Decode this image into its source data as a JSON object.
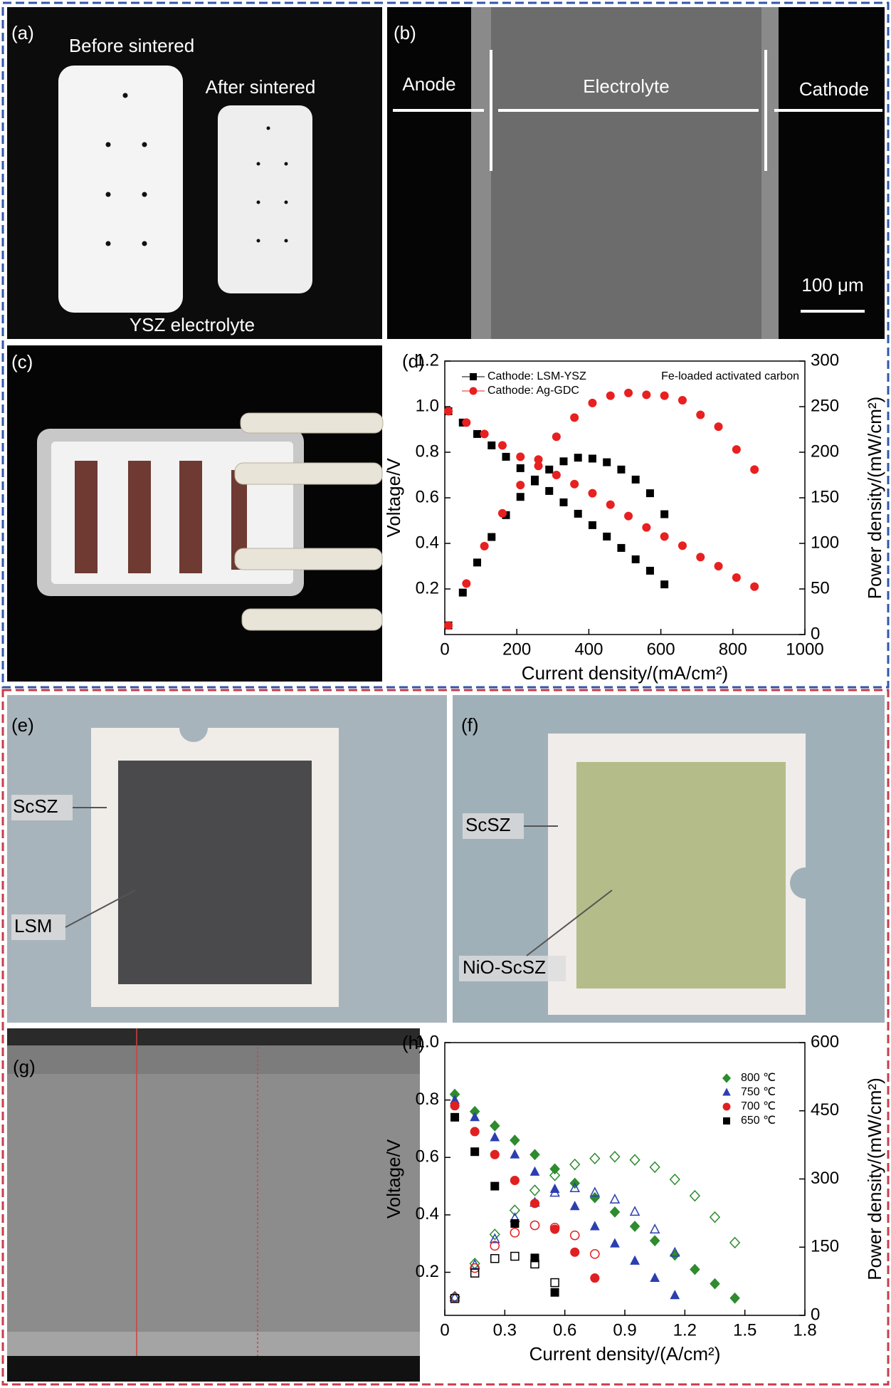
{
  "panels": {
    "a": {
      "label": "(a)",
      "before": "Before sintered",
      "after": "After sintered",
      "caption": "YSZ electrolyte"
    },
    "b": {
      "label": "(b)",
      "anode": "Anode",
      "electrolyte": "Electrolyte",
      "cathode": "Cathode",
      "scale": "100 μm"
    },
    "c": {
      "label": "(c)"
    },
    "e": {
      "label": "(e)",
      "frame": "ScSZ",
      "center": "LSM"
    },
    "f": {
      "label": "(f)",
      "frame": "ScSZ",
      "center": "NiO-ScSZ"
    },
    "g": {
      "label": "(g)"
    }
  },
  "chart_data": [
    {
      "type": "scatter",
      "panel_label": "(d)",
      "annotation": "Fe-loaded activated carbon",
      "x_label": "Current density/(mA/cm²)",
      "y_label": "Voltage/V",
      "y2_label": "Power density/(mW/cm²)",
      "xlim": [
        0,
        1000
      ],
      "xticks": [
        0,
        200,
        400,
        600,
        800,
        1000
      ],
      "ylim": [
        0,
        1.2
      ],
      "yticks": [
        0.2,
        0.4,
        0.6,
        0.8,
        {
          "value": 1,
          "label": "1.0"
        },
        1.2
      ],
      "y2lim": [
        0,
        300
      ],
      "y2ticks": [
        0,
        50,
        100,
        150,
        200,
        250,
        300
      ],
      "legend": "upper left",
      "hollow_power": false,
      "series": [
        {
          "name": "Cathode: LSM-YSZ",
          "color": "#000000",
          "marker": "square",
          "x": [
            10,
            50,
            90,
            130,
            170,
            210,
            250,
            290,
            330,
            370,
            410,
            450,
            490,
            530,
            570,
            610
          ],
          "values": [
            0.98,
            0.93,
            0.88,
            0.83,
            0.78,
            0.73,
            0.68,
            0.63,
            0.58,
            0.53,
            0.48,
            0.43,
            0.38,
            0.33,
            0.28,
            0.22
          ],
          "power": [
            10,
            46,
            79,
            107,
            131,
            151,
            168,
            181,
            190,
            194,
            193,
            189,
            181,
            170,
            155,
            132
          ]
        },
        {
          "name": "Cathode: Ag-GDC",
          "color": "#e8201f",
          "marker": "circle",
          "x": [
            10,
            60,
            110,
            160,
            210,
            260,
            310,
            360,
            410,
            460,
            510,
            560,
            610,
            660,
            710,
            760,
            810,
            860
          ],
          "values": [
            0.98,
            0.93,
            0.88,
            0.83,
            0.78,
            0.74,
            0.7,
            0.66,
            0.62,
            0.57,
            0.52,
            0.47,
            0.43,
            0.39,
            0.34,
            0.3,
            0.25,
            0.21
          ],
          "power": [
            10,
            56,
            97,
            133,
            164,
            192,
            217,
            238,
            254,
            262,
            265,
            263,
            262,
            257,
            241,
            228,
            203,
            181
          ]
        }
      ]
    },
    {
      "type": "scatter",
      "panel_label": "(h)",
      "x_label": "Current density/(A/cm²)",
      "y_label": "Voltage/V",
      "y2_label": "Power density/(mW/cm²)",
      "xlim": [
        0,
        1.8
      ],
      "xticks": [
        0,
        0.3,
        0.6,
        0.9,
        1.2,
        1.5,
        1.8
      ],
      "ylim": [
        0.05,
        1
      ],
      "yticks": [
        0.2,
        0.4,
        0.6,
        0.8,
        {
          "value": 1,
          "label": "1.0"
        }
      ],
      "y2lim": [
        0,
        600
      ],
      "y2ticks": [
        0,
        150,
        300,
        450,
        600
      ],
      "legend": "upper right",
      "hollow_power": true,
      "series": [
        {
          "name": "800 ℃",
          "color": "#2e8b2e",
          "marker": "diamond",
          "x": [
            0.05,
            0.15,
            0.25,
            0.35,
            0.45,
            0.55,
            0.65,
            0.75,
            0.85,
            0.95,
            1.05,
            1.15,
            1.25,
            1.35,
            1.45
          ],
          "values": [
            0.82,
            0.76,
            0.71,
            0.66,
            0.61,
            0.56,
            0.51,
            0.46,
            0.41,
            0.36,
            0.31,
            0.26,
            0.21,
            0.16,
            0.11
          ],
          "power": [
            41,
            114,
            178,
            231,
            275,
            308,
            332,
            345,
            349,
            342,
            326,
            299,
            263,
            216,
            160
          ]
        },
        {
          "name": "750 ℃",
          "color": "#2b3fb0",
          "marker": "triangle",
          "x": [
            0.05,
            0.15,
            0.25,
            0.35,
            0.45,
            0.55,
            0.65,
            0.75,
            0.85,
            0.95,
            1.05,
            1.15
          ],
          "values": [
            0.8,
            0.74,
            0.67,
            0.61,
            0.55,
            0.49,
            0.43,
            0.36,
            0.3,
            0.24,
            0.18,
            0.12
          ],
          "power": [
            40,
            111,
            168,
            214,
            248,
            270,
            280,
            270,
            255,
            228,
            189,
            138
          ]
        },
        {
          "name": "700 ℃",
          "color": "#e02020",
          "marker": "circle",
          "x": [
            0.05,
            0.15,
            0.25,
            0.35,
            0.45,
            0.55,
            0.65,
            0.75
          ],
          "values": [
            0.78,
            0.69,
            0.61,
            0.52,
            0.44,
            0.35,
            0.27,
            0.18
          ],
          "power": [
            39,
            104,
            153,
            182,
            198,
            193,
            176,
            135
          ]
        },
        {
          "name": "650 ℃",
          "color": "#000000",
          "marker": "square",
          "x": [
            0.05,
            0.15,
            0.25,
            0.35,
            0.45,
            0.55
          ],
          "values": [
            0.74,
            0.62,
            0.5,
            0.37,
            0.25,
            0.13
          ],
          "power": [
            37,
            93,
            125,
            130,
            113,
            72
          ]
        }
      ]
    }
  ]
}
